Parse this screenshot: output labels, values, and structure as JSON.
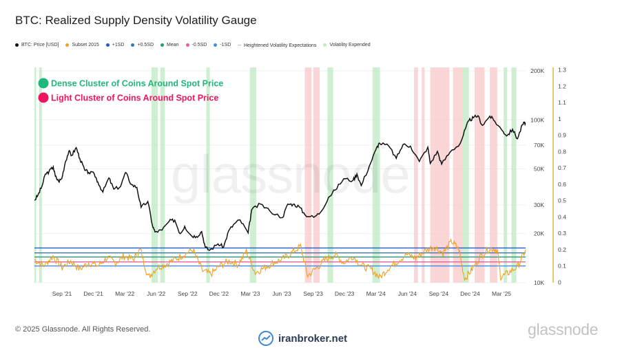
{
  "header": {
    "title": "BTC: Realized Supply Density Volatility Gauge"
  },
  "legend": [
    {
      "label": "BTC: Price [USD]",
      "color": "#111111",
      "sym": "dot"
    },
    {
      "label": "Subset 2015",
      "color": "#f0a020",
      "sym": "dot"
    },
    {
      "label": "+1SD",
      "color": "#1f5ad0",
      "sym": "dot"
    },
    {
      "label": "+0.5SD",
      "color": "#3a78b5",
      "sym": "dot"
    },
    {
      "label": "Mean",
      "color": "#2a9a7a",
      "sym": "dot"
    },
    {
      "label": "-0.5SD",
      "color": "#e060a0",
      "sym": "dot"
    },
    {
      "label": "-1SD",
      "color": "#4a8ae0",
      "sym": "dot"
    },
    {
      "label": "Heightened Volatility Expectations",
      "color": "#f8c8c8",
      "sym": "--"
    },
    {
      "label": "Volatility Expended",
      "color": "#bfeac4",
      "sym": "dot"
    }
  ],
  "annotations": [
    {
      "text": "Dense Cluster of Coins Around Spot Price",
      "color": "#1fb87a"
    },
    {
      "text": "Light Cluster of Coins Around Spot Price",
      "color": "#ee1560"
    }
  ],
  "footer": {
    "copyright": "© 2025 Glassnode. All Rights Reserved.",
    "brand": "glassnode",
    "watermark": "iranbroker.net"
  },
  "chart_data": {
    "type": "line",
    "x_ticks": [
      "Sep '21",
      "Dec '21",
      "Mar '22",
      "Jun '22",
      "Sep '22",
      "Dec '22",
      "Mar '23",
      "Jun '23",
      "Sep '23",
      "Dec '23",
      "Mar '24",
      "Jun '24",
      "Sep '24",
      "Dec '24",
      "Mar '25"
    ],
    "x_start": "2021-07-15",
    "x_end": "2025-05-01",
    "y_left": {
      "scale": "log",
      "range": [
        10000,
        200000
      ],
      "ticks": [
        "10K",
        "20K",
        "30K",
        "50K",
        "70K",
        "100K",
        "200K"
      ],
      "tick_values": [
        10000,
        20000,
        30000,
        50000,
        70000,
        100000,
        200000
      ]
    },
    "y_right": {
      "scale": "linear",
      "range": [
        0,
        1.3
      ],
      "ticks": [
        "0",
        "0.1",
        "0.2",
        "0.3",
        "0.4",
        "0.5",
        "0.6",
        "0.7",
        "0.8",
        "0.9",
        "1",
        "1.1",
        "1.2",
        "1.3"
      ]
    },
    "price_series": {
      "name": "BTC: Price [USD]",
      "points": [
        [
          "2021-07-15",
          32000
        ],
        [
          "2021-07-25",
          34500
        ],
        [
          "2021-08-05",
          39000
        ],
        [
          "2021-08-15",
          46500
        ],
        [
          "2021-08-25",
          48000
        ],
        [
          "2021-09-06",
          51500
        ],
        [
          "2021-09-12",
          45000
        ],
        [
          "2021-09-21",
          42000
        ],
        [
          "2021-09-30",
          43500
        ],
        [
          "2021-10-10",
          55000
        ],
        [
          "2021-10-20",
          64000
        ],
        [
          "2021-10-28",
          60500
        ],
        [
          "2021-11-10",
          67500
        ],
        [
          "2021-11-20",
          58000
        ],
        [
          "2021-12-04",
          49000
        ],
        [
          "2021-12-15",
          47500
        ],
        [
          "2021-12-31",
          46500
        ],
        [
          "2022-01-10",
          41500
        ],
        [
          "2022-01-24",
          36000
        ],
        [
          "2022-02-10",
          44000
        ],
        [
          "2022-02-24",
          37500
        ],
        [
          "2022-03-15",
          39000
        ],
        [
          "2022-03-29",
          47500
        ],
        [
          "2022-04-15",
          40000
        ],
        [
          "2022-04-30",
          38500
        ],
        [
          "2022-05-12",
          29000
        ],
        [
          "2022-05-31",
          31500
        ],
        [
          "2022-06-13",
          22500
        ],
        [
          "2022-06-20",
          20500
        ],
        [
          "2022-07-10",
          21000
        ],
        [
          "2022-07-30",
          23800
        ],
        [
          "2022-08-15",
          24200
        ],
        [
          "2022-08-30",
          20000
        ],
        [
          "2022-09-12",
          22200
        ],
        [
          "2022-09-30",
          19500
        ],
        [
          "2022-10-15",
          19200
        ],
        [
          "2022-10-30",
          20600
        ],
        [
          "2022-11-09",
          16500
        ],
        [
          "2022-11-21",
          15800
        ],
        [
          "2022-12-15",
          17300
        ],
        [
          "2022-12-31",
          16600
        ],
        [
          "2023-01-14",
          20800
        ],
        [
          "2023-01-31",
          23100
        ],
        [
          "2023-02-15",
          24300
        ],
        [
          "2023-03-10",
          20200
        ],
        [
          "2023-03-20",
          28000
        ],
        [
          "2023-04-14",
          30400
        ],
        [
          "2023-05-10",
          27600
        ],
        [
          "2023-06-15",
          25100
        ],
        [
          "2023-06-30",
          30400
        ],
        [
          "2023-07-15",
          30300
        ],
        [
          "2023-08-01",
          29300
        ],
        [
          "2023-08-17",
          26200
        ],
        [
          "2023-09-11",
          25200
        ],
        [
          "2023-09-30",
          27000
        ],
        [
          "2023-10-23",
          33500
        ],
        [
          "2023-11-10",
          37000
        ],
        [
          "2023-12-05",
          43500
        ],
        [
          "2023-12-31",
          42500
        ],
        [
          "2024-01-11",
          46500
        ],
        [
          "2024-01-23",
          39500
        ],
        [
          "2024-02-15",
          52000
        ],
        [
          "2024-03-05",
          66000
        ],
        [
          "2024-03-14",
          72000
        ],
        [
          "2024-04-10",
          69000
        ],
        [
          "2024-05-01",
          58000
        ],
        [
          "2024-05-20",
          70500
        ],
        [
          "2024-06-10",
          69000
        ],
        [
          "2024-07-05",
          55500
        ],
        [
          "2024-07-29",
          68000
        ],
        [
          "2024-08-05",
          54000
        ],
        [
          "2024-08-25",
          64000
        ],
        [
          "2024-09-06",
          53500
        ],
        [
          "2024-09-30",
          63500
        ],
        [
          "2024-10-29",
          72000
        ],
        [
          "2024-11-12",
          88000
        ],
        [
          "2024-11-22",
          99000
        ],
        [
          "2024-12-05",
          103000
        ],
        [
          "2024-12-17",
          106000
        ],
        [
          "2024-12-30",
          92500
        ],
        [
          "2025-01-20",
          105500
        ],
        [
          "2025-02-03",
          98000
        ],
        [
          "2025-02-27",
          84500
        ],
        [
          "2025-03-10",
          80000
        ],
        [
          "2025-03-25",
          87500
        ],
        [
          "2025-04-08",
          76500
        ],
        [
          "2025-04-22",
          93500
        ],
        [
          "2025-05-01",
          96500
        ]
      ]
    },
    "gauge_series": {
      "name": "Subset 2015",
      "points": [
        [
          "2021-07-15",
          0.14
        ],
        [
          "2021-08-10",
          0.1
        ],
        [
          "2021-09-05",
          0.16
        ],
        [
          "2021-10-01",
          0.09
        ],
        [
          "2021-10-25",
          0.13
        ],
        [
          "2021-11-20",
          0.08
        ],
        [
          "2021-12-15",
          0.12
        ],
        [
          "2022-01-10",
          0.1
        ],
        [
          "2022-02-05",
          0.15
        ],
        [
          "2022-03-01",
          0.12
        ],
        [
          "2022-03-25",
          0.16
        ],
        [
          "2022-04-20",
          0.14
        ],
        [
          "2022-05-10",
          0.2
        ],
        [
          "2022-06-01",
          0.03
        ],
        [
          "2022-06-25",
          0.09
        ],
        [
          "2022-07-20",
          0.11
        ],
        [
          "2022-08-15",
          0.14
        ],
        [
          "2022-09-10",
          0.17
        ],
        [
          "2022-10-05",
          0.2
        ],
        [
          "2022-11-01",
          0.07
        ],
        [
          "2022-11-25",
          0.05
        ],
        [
          "2022-12-20",
          0.1
        ],
        [
          "2023-01-15",
          0.13
        ],
        [
          "2023-02-10",
          0.11
        ],
        [
          "2023-03-05",
          0.19
        ],
        [
          "2023-03-30",
          0.06
        ],
        [
          "2023-04-25",
          0.09
        ],
        [
          "2023-05-20",
          0.12
        ],
        [
          "2023-06-15",
          0.14
        ],
        [
          "2023-07-10",
          0.18
        ],
        [
          "2023-08-05",
          0.22
        ],
        [
          "2023-08-25",
          0.04
        ],
        [
          "2023-09-20",
          0.09
        ],
        [
          "2023-10-15",
          0.14
        ],
        [
          "2023-11-10",
          0.17
        ],
        [
          "2023-12-05",
          0.12
        ],
        [
          "2023-12-31",
          0.16
        ],
        [
          "2024-01-25",
          0.1
        ],
        [
          "2024-02-20",
          0.08
        ],
        [
          "2024-03-15",
          0.03
        ],
        [
          "2024-04-10",
          0.09
        ],
        [
          "2024-05-05",
          0.13
        ],
        [
          "2024-05-30",
          0.17
        ],
        [
          "2024-06-25",
          0.15
        ],
        [
          "2024-07-20",
          0.19
        ],
        [
          "2024-08-15",
          0.22
        ],
        [
          "2024-09-10",
          0.18
        ],
        [
          "2024-10-05",
          0.25
        ],
        [
          "2024-10-25",
          0.2
        ],
        [
          "2024-11-10",
          0.02
        ],
        [
          "2024-12-01",
          0.08
        ],
        [
          "2024-12-25",
          0.16
        ],
        [
          "2025-01-20",
          0.21
        ],
        [
          "2025-02-10",
          0.2
        ],
        [
          "2025-02-20",
          0.03
        ],
        [
          "2025-03-15",
          0.06
        ],
        [
          "2025-04-10",
          0.1
        ],
        [
          "2025-05-01",
          0.2
        ]
      ]
    },
    "bands": [
      {
        "name": "+1SD",
        "value": 0.21,
        "color": "#1f5ad0"
      },
      {
        "name": "+0.5SD",
        "value": 0.18,
        "color": "#3a78b5"
      },
      {
        "name": "Mean",
        "value": 0.155,
        "color": "#2a9a7a"
      },
      {
        "name": "-0.5SD",
        "value": 0.125,
        "color": "#e060a0"
      },
      {
        "name": "-1SD",
        "value": 0.1,
        "color": "#4a8ae0"
      }
    ],
    "shaded_regions": {
      "volatility_expended": [
        [
          "2021-07-15",
          "2021-07-20"
        ],
        [
          "2021-07-28",
          "2021-08-05"
        ],
        [
          "2022-06-10",
          "2022-06-28"
        ],
        [
          "2022-07-05",
          "2022-07-18"
        ],
        [
          "2022-11-12",
          "2022-11-22"
        ],
        [
          "2023-03-15",
          "2023-04-02"
        ],
        [
          "2023-10-20",
          "2023-11-05"
        ],
        [
          "2024-02-24",
          "2024-03-16"
        ],
        [
          "2024-11-04",
          "2024-11-22"
        ],
        [
          "2025-02-28",
          "2025-03-10"
        ],
        [
          "2025-03-22",
          "2025-04-05"
        ]
      ],
      "heightened_volatility": [
        [
          "2023-08-17",
          "2023-09-05"
        ],
        [
          "2023-09-10",
          "2023-09-28"
        ],
        [
          "2024-06-20",
          "2024-07-01"
        ],
        [
          "2024-07-12",
          "2024-07-20"
        ],
        [
          "2024-08-05",
          "2024-09-28"
        ],
        [
          "2024-10-08",
          "2024-11-04"
        ],
        [
          "2024-12-08",
          "2025-01-05"
        ],
        [
          "2025-01-20",
          "2025-02-10"
        ]
      ]
    }
  }
}
